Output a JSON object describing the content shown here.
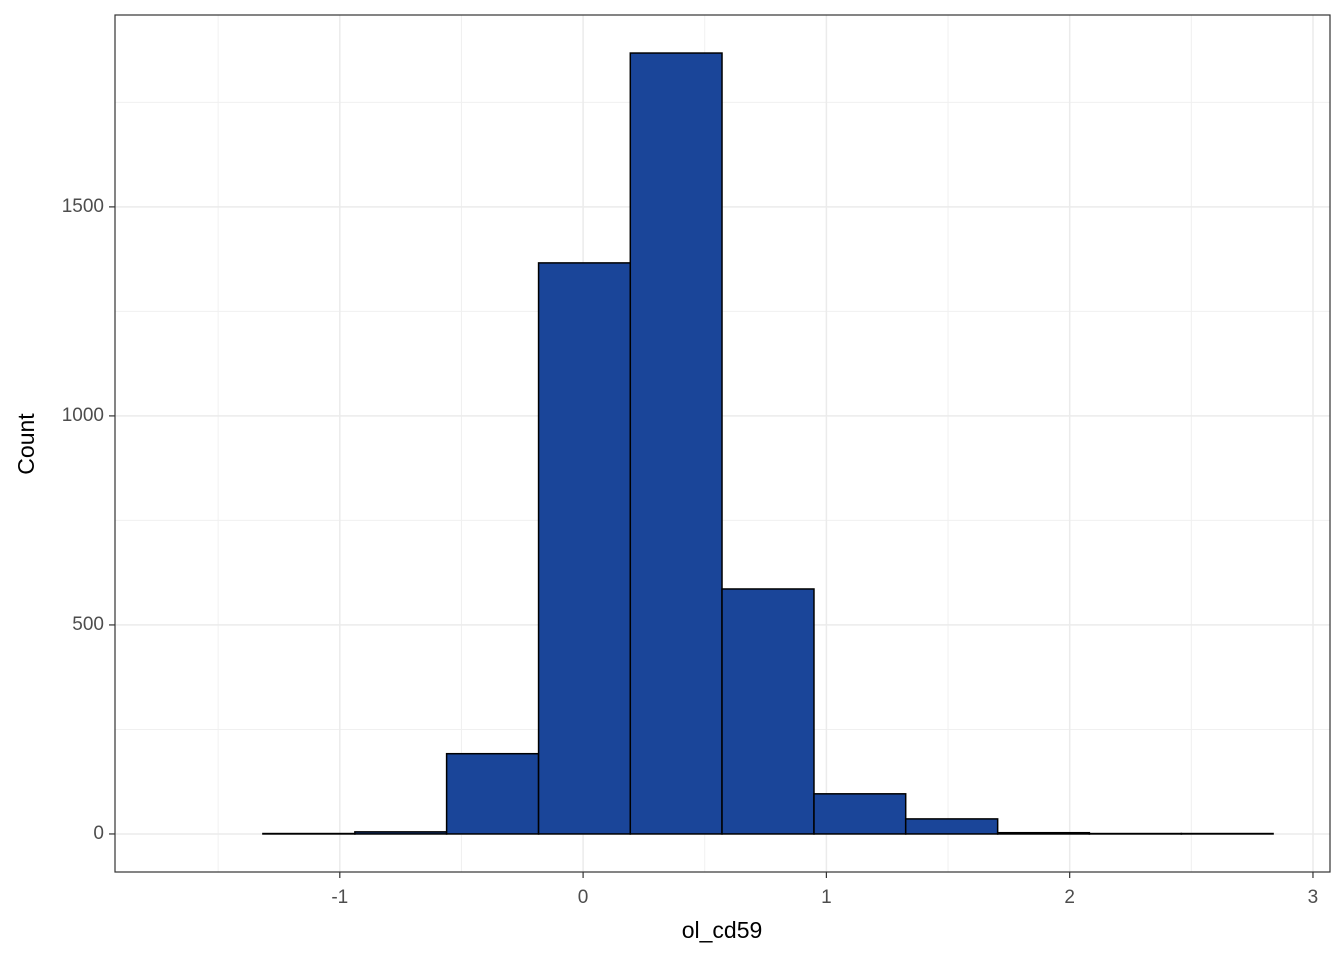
{
  "chart_data": {
    "type": "histogram",
    "x_label": "ol_cd59",
    "y_label": "Count",
    "bins": [
      -1.693,
      -1.316,
      -0.938,
      -0.561,
      -0.183,
      0.194,
      0.571,
      0.949,
      1.326,
      1.704,
      2.081,
      2.459,
      2.836
    ],
    "values": [
      0,
      1,
      5,
      192,
      1366,
      1868,
      586,
      96,
      36,
      3,
      1,
      1
    ],
    "color": "#1a4599",
    "xlim": [
      -1.924,
      3.07
    ],
    "ylim": [
      -91,
      1959
    ],
    "xticks": [
      -1,
      0,
      1,
      2,
      3
    ],
    "yticks": [
      0,
      500,
      1000,
      1500
    ],
    "grid": true,
    "minor_grid": true
  }
}
